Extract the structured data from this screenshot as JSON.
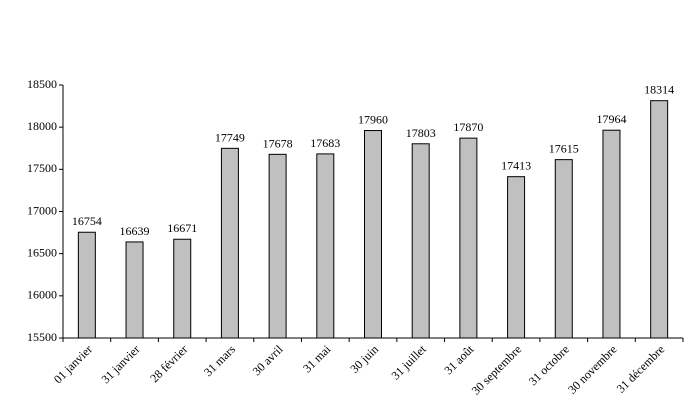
{
  "chart_data": {
    "type": "bar",
    "categories": [
      "01 janvier",
      "31 janvier",
      "28 février",
      "31 mars",
      "30 avril",
      "31 mai",
      "30 juin",
      "31 juillet",
      "31 août",
      "30 septembre",
      "31 octobre",
      "30 novembre",
      "31 décembre"
    ],
    "values": [
      16754,
      16639,
      16671,
      17749,
      17678,
      17683,
      17960,
      17803,
      17870,
      17413,
      17615,
      17964,
      18314
    ],
    "color": "#c0c0c0",
    "ylim": [
      15500,
      18500
    ],
    "yticks": [
      15500,
      16000,
      16500,
      17000,
      17500,
      18000,
      18500
    ],
    "grid": false
  }
}
